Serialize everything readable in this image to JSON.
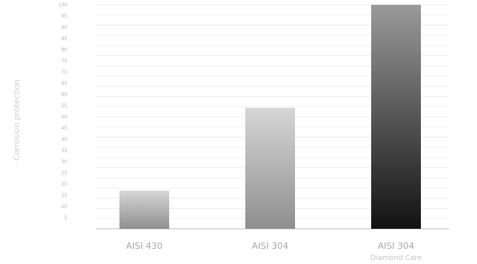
{
  "chart_data": {
    "type": "bar",
    "categories": [
      "AISI 430",
      "AISI 304",
      "AISI 304"
    ],
    "category_sublabels": [
      "",
      "",
      "Diamond Care"
    ],
    "values": [
      17,
      54,
      100
    ],
    "ylabel": "Corrosion protection",
    "ylim": [
      0,
      100
    ],
    "grid": true,
    "legend": "none",
    "colors": {
      "bar_light_top": "#d6d6d6",
      "bar_light_bottom": "#8f8f8f",
      "bar_dark_top": "#9a9a9a",
      "bar_dark_bottom": "#121212",
      "grid": "#ececec",
      "baseline": "#bdbdbd"
    }
  }
}
